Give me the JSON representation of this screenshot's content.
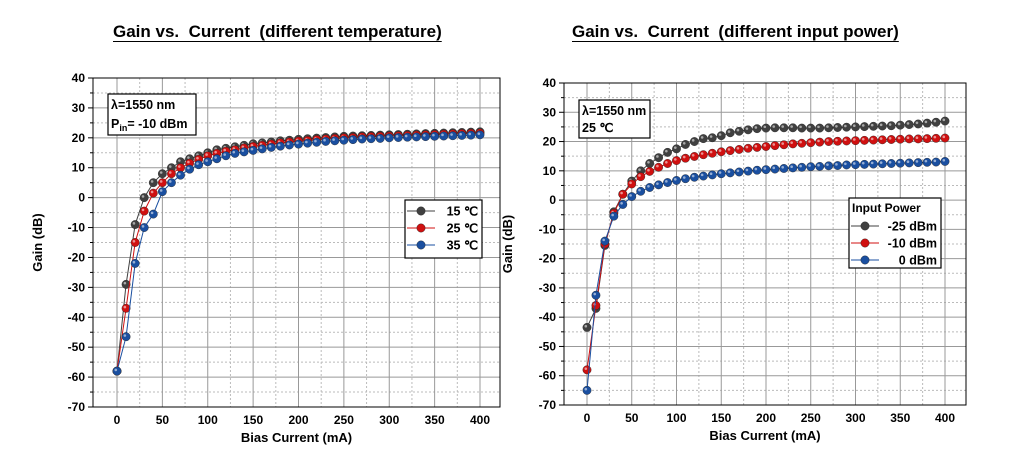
{
  "chart_data": [
    {
      "type": "line",
      "title": "Gain vs.  Current  (different temperature)",
      "xlabel": "Bias Current (mA)",
      "ylabel": "Gain (dB)",
      "xlim": [
        0,
        400
      ],
      "ylim": [
        -70,
        40
      ],
      "xticks": [
        0,
        50,
        100,
        150,
        200,
        250,
        300,
        350,
        400
      ],
      "yticks": [
        40,
        30,
        20,
        10,
        0,
        -10,
        -20,
        -30,
        -40,
        -50,
        -60,
        -70
      ],
      "grid": true,
      "legend_position": "middle-right",
      "annotation": {
        "wavelength": "λ=1550 nm",
        "pin_prefix": "P",
        "pin_sub": "in",
        "pin_suffix": "= -10 dBm"
      },
      "x": [
        0,
        10,
        20,
        30,
        40,
        50,
        60,
        70,
        80,
        90,
        100,
        110,
        120,
        130,
        140,
        150,
        160,
        170,
        180,
        190,
        200,
        210,
        220,
        230,
        240,
        250,
        260,
        270,
        280,
        290,
        300,
        310,
        320,
        330,
        340,
        350,
        360,
        370,
        380,
        390,
        400
      ],
      "series": [
        {
          "name": "15 ℃",
          "color": "#404040",
          "values": [
            -58,
            -29,
            -9,
            0,
            5,
            8,
            10,
            12,
            13,
            14,
            15,
            16,
            16.5,
            17,
            17.5,
            18,
            18.3,
            18.6,
            19,
            19.2,
            19.5,
            19.7,
            19.9,
            20.1,
            20.3,
            20.5,
            20.6,
            20.7,
            20.8,
            20.9,
            21,
            21.1,
            21.2,
            21.3,
            21.4,
            21.5,
            21.6,
            21.7,
            21.8,
            21.9,
            22
          ]
        },
        {
          "name": "25 ℃",
          "color": "#d01010",
          "values": [
            -58,
            -37,
            -15,
            -4.5,
            1.5,
            5,
            8,
            10,
            11.5,
            12.8,
            14,
            14.8,
            15.5,
            16,
            16.6,
            17.1,
            17.5,
            17.9,
            18.3,
            18.6,
            18.9,
            19.1,
            19.4,
            19.6,
            19.8,
            20,
            20.1,
            20.3,
            20.4,
            20.5,
            20.6,
            20.7,
            20.8,
            20.9,
            21,
            21.1,
            21.2,
            21.3,
            21.4,
            21.5,
            21.6
          ]
        },
        {
          "name": "35 ℃",
          "color": "#1a4fa0",
          "values": [
            -58,
            -46.5,
            -22,
            -10,
            -5.5,
            2,
            5,
            7.5,
            9.5,
            11,
            12,
            13,
            14,
            14.8,
            15.3,
            15.8,
            16.3,
            16.8,
            17.2,
            17.6,
            17.9,
            18.2,
            18.5,
            18.8,
            19,
            19.2,
            19.4,
            19.6,
            19.7,
            19.8,
            20,
            20.1,
            20.2,
            20.3,
            20.4,
            20.5,
            20.6,
            20.7,
            20.8,
            20.9,
            21
          ]
        }
      ]
    },
    {
      "type": "line",
      "title": "Gain vs.  Current  (different input power)",
      "xlabel": "Bias Current (mA)",
      "ylabel": "Gain (dB)",
      "xlim": [
        0,
        400
      ],
      "ylim": [
        -70,
        40
      ],
      "xticks": [
        0,
        50,
        100,
        150,
        200,
        250,
        300,
        350,
        400
      ],
      "yticks": [
        40,
        30,
        20,
        10,
        0,
        -10,
        -20,
        -30,
        -40,
        -50,
        -60,
        -70
      ],
      "grid": true,
      "legend_position": "middle-right",
      "legend_title": "Input Power",
      "annotation": {
        "wavelength": "λ=1550 nm",
        "temperature": "25 ℃"
      },
      "x": [
        0,
        10,
        20,
        30,
        40,
        50,
        60,
        70,
        80,
        90,
        100,
        110,
        120,
        130,
        140,
        150,
        160,
        170,
        180,
        190,
        200,
        210,
        220,
        230,
        240,
        250,
        260,
        270,
        280,
        290,
        300,
        310,
        320,
        330,
        340,
        350,
        360,
        370,
        380,
        390,
        400
      ],
      "series": [
        {
          "name": "-25 dBm",
          "color": "#404040",
          "values": [
            -43.5,
            -37,
            -15.5,
            -4,
            2,
            6.5,
            10,
            12.5,
            14.5,
            16.3,
            17.5,
            19,
            20,
            21,
            21.3,
            22,
            23,
            23.5,
            24,
            24.4,
            24.6,
            24.7,
            24.7,
            24.7,
            24.6,
            24.6,
            24.6,
            24.7,
            24.8,
            24.9,
            25,
            25.1,
            25.2,
            25.3,
            25.4,
            25.6,
            25.8,
            26,
            26.3,
            26.6,
            27
          ]
        },
        {
          "name": "-10 dBm",
          "color": "#d01010",
          "values": [
            -58,
            -36,
            -15,
            -4.5,
            2,
            5.5,
            8,
            9.8,
            11.2,
            12.5,
            13.5,
            14.3,
            14.9,
            15.5,
            16,
            16.5,
            16.9,
            17.3,
            17.7,
            18,
            18.3,
            18.6,
            18.9,
            19.2,
            19.4,
            19.6,
            19.8,
            20,
            20.1,
            20.2,
            20.3,
            20.4,
            20.5,
            20.6,
            20.7,
            20.8,
            20.9,
            20.9,
            21,
            21.1,
            21.2
          ]
        },
        {
          "name": "0 dBm",
          "color": "#1a4fa0",
          "values": [
            -65,
            -32.5,
            -14,
            -5.5,
            -1.5,
            1.2,
            3,
            4.3,
            5.2,
            6,
            6.7,
            7.3,
            7.8,
            8.2,
            8.6,
            9,
            9.3,
            9.6,
            9.9,
            10.2,
            10.4,
            10.6,
            10.8,
            11,
            11.2,
            11.4,
            11.5,
            11.7,
            11.8,
            12,
            12.1,
            12.2,
            12.3,
            12.4,
            12.5,
            12.6,
            12.7,
            12.8,
            12.9,
            13,
            13.2
          ]
        }
      ]
    }
  ]
}
